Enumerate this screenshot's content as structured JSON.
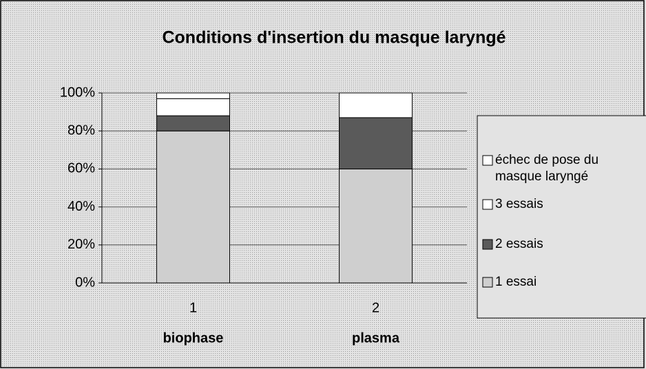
{
  "chart_data": {
    "type": "stacked_bar",
    "title": "Conditions d'insertion du masque laryngé",
    "categories": [
      "1",
      "2"
    ],
    "category_names": [
      "biophase",
      "plasma"
    ],
    "series": [
      {
        "name": "1 essai",
        "color": "#cfcfcf",
        "values": [
          80,
          60
        ]
      },
      {
        "name": "2 essais",
        "color": "#5a5a5a",
        "values": [
          8,
          27
        ]
      },
      {
        "name": "3 essais",
        "color": "#ffffff",
        "values": [
          9,
          13
        ]
      },
      {
        "name": "échec de pose du masque laryngé",
        "color": "#ffffff",
        "values": [
          3,
          0
        ]
      }
    ],
    "ylim": [
      0,
      100
    ],
    "yticks": [
      {
        "value": 0,
        "label": "0%"
      },
      {
        "value": 20,
        "label": "20%"
      },
      {
        "value": 40,
        "label": "40%"
      },
      {
        "value": 60,
        "label": "60%"
      },
      {
        "value": 80,
        "label": "80%"
      },
      {
        "value": 100,
        "label": "100%"
      }
    ],
    "grid": true,
    "legend": "right"
  }
}
